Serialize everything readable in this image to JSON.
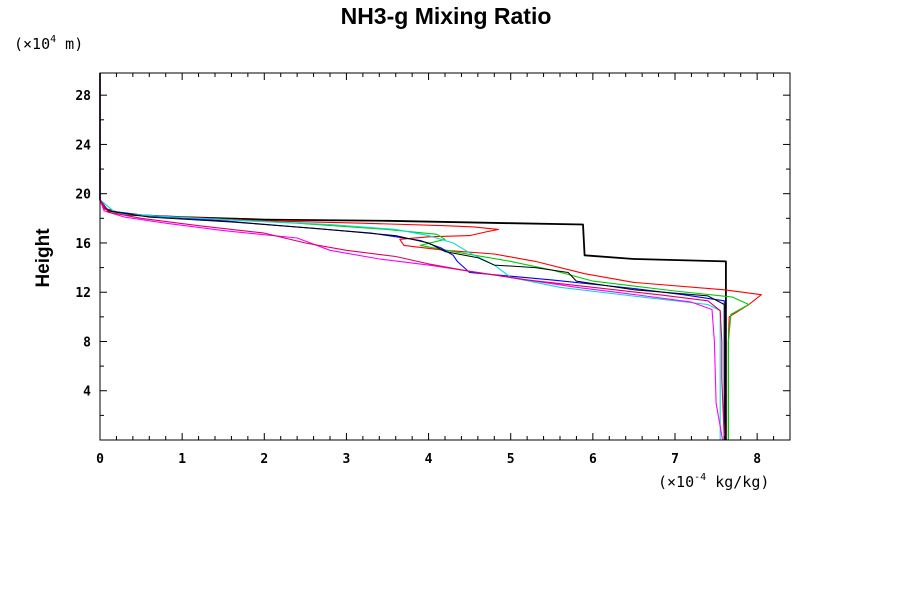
{
  "chart_data": {
    "type": "line",
    "title": "NH3-g Mixing Ratio",
    "ylabel": "Height",
    "xlabel": "",
    "x_unit": {
      "prefix": "(×10",
      "exp": "-4",
      "suffix": " kg/kg)"
    },
    "y_unit": {
      "prefix": "(×10",
      "exp": "4",
      "suffix": " m)"
    },
    "xlim": [
      0,
      8.4
    ],
    "ylim": [
      0,
      29.8
    ],
    "x_ticks": [
      "0",
      "1",
      "2",
      "3",
      "4",
      "5",
      "6",
      "7",
      "8"
    ],
    "y_ticks": [
      "4",
      "8",
      "12",
      "16",
      "20",
      "24",
      "28"
    ],
    "grid": false,
    "series": [
      {
        "color": "#000000",
        "width": 1.8,
        "points": [
          [
            7.62,
            0
          ],
          [
            7.62,
            8
          ],
          [
            7.62,
            12
          ],
          [
            7.62,
            14.5
          ],
          [
            6.5,
            14.7
          ],
          [
            5.9,
            15
          ],
          [
            5.88,
            17.5
          ],
          [
            5,
            17.6
          ],
          [
            3.5,
            17.8
          ],
          [
            2,
            17.9
          ],
          [
            1,
            18.1
          ],
          [
            0.3,
            18.3
          ],
          [
            0.05,
            18.8
          ],
          [
            0,
            19.5
          ],
          [
            0,
            29.8
          ]
        ]
      },
      {
        "color": "#ff0000",
        "width": 1.1,
        "points": [
          [
            7.65,
            0
          ],
          [
            7.65,
            8
          ],
          [
            7.66,
            10
          ],
          [
            7.9,
            11
          ],
          [
            8.05,
            11.8
          ],
          [
            7.6,
            12.2
          ],
          [
            6.5,
            12.8
          ],
          [
            5.9,
            13.5
          ],
          [
            5.3,
            14.5
          ],
          [
            4.8,
            15.1
          ],
          [
            4.2,
            15.4
          ],
          [
            3.7,
            15.8
          ],
          [
            3.65,
            16.3
          ],
          [
            4,
            16.5
          ],
          [
            4.5,
            16.6
          ],
          [
            4.7,
            16.9
          ],
          [
            4.85,
            17.1
          ],
          [
            4.55,
            17.3
          ],
          [
            4.2,
            17.4
          ],
          [
            3.2,
            17.6
          ],
          [
            2,
            17.8
          ],
          [
            1,
            18.1
          ],
          [
            0.3,
            18.3
          ],
          [
            0.05,
            18.8
          ],
          [
            0,
            19.5
          ],
          [
            0,
            29.8
          ]
        ]
      },
      {
        "color": "#00cc00",
        "width": 1.1,
        "points": [
          [
            7.65,
            0
          ],
          [
            7.65,
            8
          ],
          [
            7.68,
            10.2
          ],
          [
            7.9,
            11
          ],
          [
            7.7,
            11.6
          ],
          [
            7,
            12.1
          ],
          [
            6,
            12.9
          ],
          [
            5.5,
            13.8
          ],
          [
            5,
            14.5
          ],
          [
            4.3,
            15.3
          ],
          [
            3.9,
            15.8
          ],
          [
            4.2,
            16.3
          ],
          [
            4.1,
            16.7
          ],
          [
            3.5,
            17.1
          ],
          [
            2.4,
            17.6
          ],
          [
            1.5,
            17.9
          ],
          [
            0.6,
            18.2
          ],
          [
            0.1,
            18.6
          ],
          [
            0,
            19.5
          ],
          [
            0,
            29.8
          ]
        ]
      },
      {
        "color": "#0000ff",
        "width": 1.1,
        "points": [
          [
            7.6,
            0
          ],
          [
            7.6,
            8
          ],
          [
            7.6,
            10.6
          ],
          [
            7.6,
            11.3
          ],
          [
            7.1,
            11.8
          ],
          [
            6.5,
            12.3
          ],
          [
            5.5,
            13
          ],
          [
            4.5,
            13.6
          ],
          [
            4.35,
            14.5
          ],
          [
            4.3,
            15
          ],
          [
            4.15,
            15.6
          ],
          [
            3.9,
            16.2
          ],
          [
            3.3,
            16.8
          ],
          [
            2.2,
            17.4
          ],
          [
            1.5,
            17.8
          ],
          [
            0.6,
            18.2
          ],
          [
            0.1,
            18.6
          ],
          [
            0,
            19.5
          ],
          [
            0,
            29.8
          ]
        ]
      },
      {
        "color": "#00dddd",
        "width": 1.1,
        "points": [
          [
            7.55,
            0
          ],
          [
            7.55,
            8
          ],
          [
            7.55,
            10.5
          ],
          [
            7.4,
            11
          ],
          [
            6.6,
            11.6
          ],
          [
            5.6,
            12.4
          ],
          [
            5,
            13.2
          ],
          [
            4.8,
            14.2
          ],
          [
            4.5,
            15.2
          ],
          [
            4.3,
            16
          ],
          [
            4,
            16.6
          ],
          [
            3.6,
            17.1
          ],
          [
            2.8,
            17.5
          ],
          [
            1.8,
            17.8
          ],
          [
            0.9,
            18.1
          ],
          [
            0.2,
            18.4
          ],
          [
            0,
            19.5
          ],
          [
            0,
            29.8
          ]
        ]
      },
      {
        "color": "#ff00ff",
        "width": 1.1,
        "points": [
          [
            7.58,
            0
          ],
          [
            7.5,
            3
          ],
          [
            7.48,
            8
          ],
          [
            7.45,
            10.6
          ],
          [
            7.2,
            11.2
          ],
          [
            6.4,
            11.9
          ],
          [
            5.8,
            12.4
          ],
          [
            5.2,
            13
          ],
          [
            4.6,
            13.6
          ],
          [
            4,
            14.2
          ],
          [
            3.4,
            14.7
          ],
          [
            2.8,
            15.4
          ],
          [
            2.4,
            16.4
          ],
          [
            1.5,
            17
          ],
          [
            0.8,
            17.6
          ],
          [
            0.3,
            18.1
          ],
          [
            0.05,
            18.6
          ],
          [
            0,
            19.5
          ],
          [
            0,
            29.8
          ]
        ]
      },
      {
        "color": "#000000",
        "width": 1.0,
        "points": [
          [
            7.6,
            0
          ],
          [
            7.6,
            8
          ],
          [
            7.6,
            11
          ],
          [
            7.4,
            11.7
          ],
          [
            6.5,
            12.2
          ],
          [
            5.8,
            12.9
          ],
          [
            5.7,
            13.6
          ],
          [
            5.3,
            14
          ],
          [
            4.8,
            14.2
          ],
          [
            4.6,
            14.8
          ],
          [
            4.2,
            15.3
          ],
          [
            4,
            16
          ],
          [
            3.6,
            16.6
          ],
          [
            2.6,
            17.2
          ],
          [
            1.6,
            17.7
          ],
          [
            0.6,
            18.1
          ],
          [
            0.1,
            18.6
          ],
          [
            0,
            19.5
          ],
          [
            0,
            29.8
          ]
        ]
      },
      {
        "color": "#dd0066",
        "width": 1.1,
        "points": [
          [
            7.6,
            0
          ],
          [
            7.57,
            5
          ],
          [
            7.57,
            8
          ],
          [
            7.55,
            10.5
          ],
          [
            7.4,
            11.3
          ],
          [
            6.8,
            11.8
          ],
          [
            6,
            12.4
          ],
          [
            5.2,
            13
          ],
          [
            4.5,
            13.7
          ],
          [
            4,
            14.3
          ],
          [
            3.6,
            14.9
          ],
          [
            3,
            15.4
          ],
          [
            2.5,
            16
          ],
          [
            2,
            16.8
          ],
          [
            1.2,
            17.4
          ],
          [
            0.5,
            18
          ],
          [
            0.1,
            18.5
          ],
          [
            0,
            19.5
          ],
          [
            0,
            29.8
          ]
        ]
      }
    ]
  }
}
